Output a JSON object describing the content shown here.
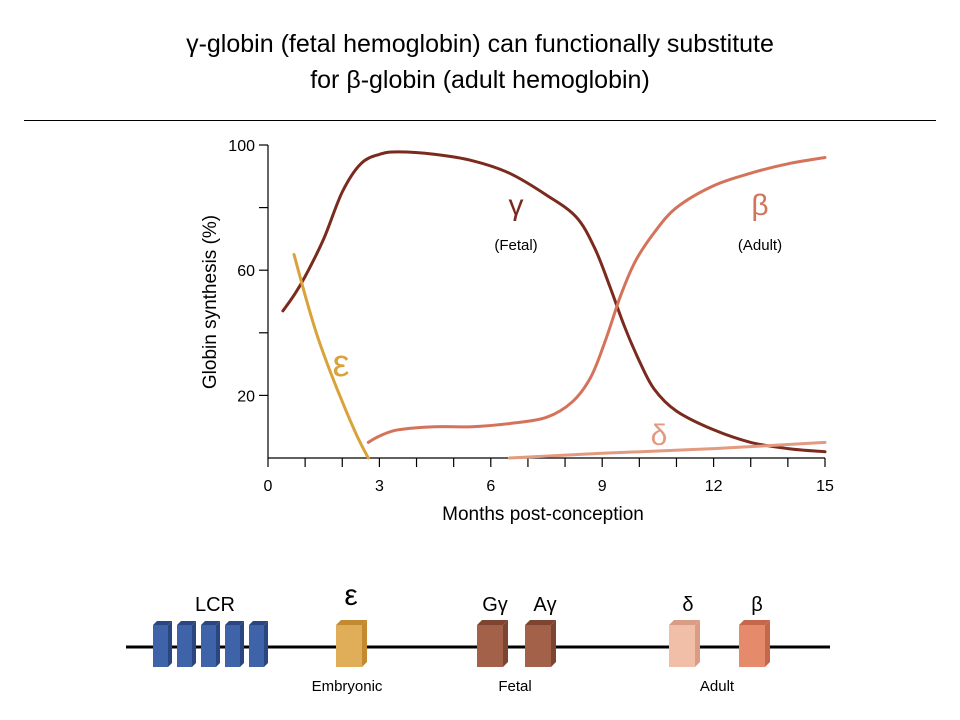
{
  "header": {
    "title_line1": "γ-globin (fetal hemoglobin) can functionally substitute",
    "title_line2": "for β-globin (adult hemoglobin)"
  },
  "chart_data": {
    "type": "line",
    "xlabel": "Months post-conception",
    "ylabel": "Globin synthesis (%)",
    "xlim": [
      0,
      15
    ],
    "ylim": [
      0,
      100
    ],
    "x_ticks": [
      0,
      3,
      6,
      9,
      12,
      15
    ],
    "x_minor_ticks": [
      1,
      2,
      4,
      5,
      7,
      8,
      10,
      11,
      13,
      14
    ],
    "y_ticks": [
      20,
      60,
      100
    ],
    "y_minor_ticks": [
      40,
      80
    ],
    "grid": false,
    "series": [
      {
        "name": "γ",
        "sublabel": "(Fetal)",
        "color": "#7b2a1e",
        "points": [
          [
            0.4,
            47
          ],
          [
            0.7,
            52
          ],
          [
            1.0,
            58
          ],
          [
            1.5,
            70
          ],
          [
            2.0,
            85
          ],
          [
            2.5,
            94
          ],
          [
            3.0,
            97
          ],
          [
            3.5,
            97.8
          ],
          [
            4.5,
            97
          ],
          [
            5.5,
            95
          ],
          [
            6.5,
            91
          ],
          [
            7.5,
            84
          ],
          [
            8.3,
            77
          ],
          [
            8.8,
            67
          ],
          [
            9.2,
            55
          ],
          [
            9.6,
            42
          ],
          [
            10.0,
            31
          ],
          [
            10.4,
            22
          ],
          [
            11.0,
            15
          ],
          [
            12.0,
            9
          ],
          [
            13.0,
            5
          ],
          [
            14.0,
            3
          ],
          [
            15.0,
            2
          ]
        ]
      },
      {
        "name": "β",
        "sublabel": "(Adult)",
        "color": "#d4735a",
        "points": [
          [
            2.7,
            5
          ],
          [
            3.0,
            7
          ],
          [
            3.5,
            9
          ],
          [
            4.5,
            10
          ],
          [
            5.5,
            10
          ],
          [
            6.5,
            11
          ],
          [
            7.5,
            13
          ],
          [
            8.2,
            18
          ],
          [
            8.7,
            26
          ],
          [
            9.1,
            38
          ],
          [
            9.5,
            52
          ],
          [
            9.9,
            63
          ],
          [
            10.4,
            72
          ],
          [
            11.0,
            80
          ],
          [
            12.0,
            87
          ],
          [
            13.0,
            91
          ],
          [
            14.0,
            94
          ],
          [
            15.0,
            96
          ]
        ]
      },
      {
        "name": "ε",
        "color": "#d9a23a",
        "points": [
          [
            0.7,
            65
          ],
          [
            1.0,
            52
          ],
          [
            1.3,
            40
          ],
          [
            1.6,
            30
          ],
          [
            2.0,
            18
          ],
          [
            2.4,
            7
          ],
          [
            2.7,
            0
          ]
        ]
      },
      {
        "name": "δ",
        "color": "#e39a80",
        "points": [
          [
            6.5,
            0
          ],
          [
            9,
            1.5
          ],
          [
            12,
            3
          ],
          [
            15,
            5
          ]
        ]
      }
    ]
  },
  "gene_map": {
    "lcr_label": "LCR",
    "genes": [
      {
        "label": "ε",
        "color": "#e0ad58",
        "side": "#c48a30"
      },
      {
        "label": "Gγ",
        "color": "#a4614a",
        "side": "#7e4432"
      },
      {
        "label": "Aγ",
        "color": "#a4614a",
        "side": "#7e4432"
      },
      {
        "label": "δ",
        "color": "#f1bea8",
        "side": "#d99c84"
      },
      {
        "label": "β",
        "color": "#e68a6c",
        "side": "#c4674d"
      }
    ],
    "lcr_color": "#3e63a8",
    "lcr_side": "#2a4680",
    "group_labels": [
      "Embryonic",
      "Fetal",
      "Adult"
    ]
  }
}
